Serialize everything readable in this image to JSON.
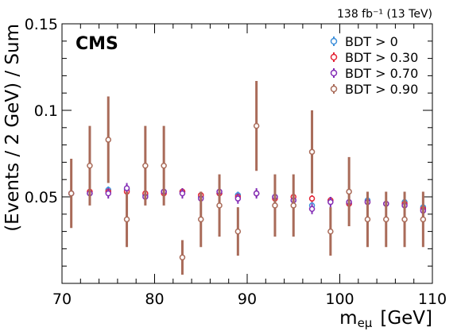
{
  "chart_data": {
    "type": "scatter",
    "lumi_label": "138 fb⁻¹ (13 TeV)",
    "experiment_label": "CMS",
    "xlabel_main": "m",
    "xlabel_sub": "eμ",
    "xlabel_unit": "[GeV]",
    "ylabel": "(Events / 2 GeV) / Sum",
    "xlim": [
      70,
      110
    ],
    "ylim": [
      0,
      0.15
    ],
    "xticks": [
      70,
      80,
      90,
      100,
      110
    ],
    "xtick_labels": [
      "70",
      "80",
      "90",
      "100",
      "110"
    ],
    "yticks": [
      0.05,
      0.1,
      0.15
    ],
    "ytick_labels": [
      "0.05",
      "0.1",
      "0.15"
    ],
    "legend_position": "top-right",
    "colors": {
      "s0": "#3f90da",
      "s1": "#e42536",
      "s2": "#832db6",
      "s3": "#a96b59"
    },
    "x": [
      71,
      73,
      75,
      77,
      79,
      81,
      83,
      85,
      87,
      89,
      91,
      93,
      95,
      97,
      99,
      101,
      103,
      105,
      107,
      109
    ],
    "series": [
      {
        "name": "BDT > 0",
        "values": [
          0.052,
          0.052,
          0.054,
          0.054,
          0.051,
          0.053,
          0.053,
          0.05,
          0.052,
          0.051,
          0.052,
          0.05,
          0.048,
          0.045,
          0.048,
          0.046,
          0.048,
          0.046,
          0.047,
          0.044
        ],
        "errors": [
          0.002,
          0.002,
          0.002,
          0.002,
          0.002,
          0.002,
          0.002,
          0.002,
          0.002,
          0.002,
          0.002,
          0.002,
          0.002,
          0.002,
          0.002,
          0.002,
          0.002,
          0.002,
          0.002,
          0.002
        ]
      },
      {
        "name": "BDT > 0.30",
        "values": [
          0.052,
          0.053,
          0.053,
          0.053,
          0.052,
          0.052,
          0.053,
          0.051,
          0.052,
          0.05,
          0.052,
          0.049,
          0.05,
          0.049,
          0.048,
          0.046,
          0.047,
          0.046,
          0.046,
          0.043
        ],
        "errors": [
          0.002,
          0.002,
          0.002,
          0.002,
          0.002,
          0.002,
          0.002,
          0.002,
          0.002,
          0.002,
          0.002,
          0.002,
          0.002,
          0.002,
          0.002,
          0.002,
          0.002,
          0.002,
          0.002,
          0.002
        ]
      },
      {
        "name": "BDT > 0.70",
        "values": [
          0.052,
          0.052,
          0.052,
          0.055,
          0.05,
          0.053,
          0.052,
          0.049,
          0.053,
          0.049,
          0.052,
          0.05,
          0.048,
          0.043,
          0.047,
          0.047,
          0.047,
          0.046,
          0.045,
          0.042
        ],
        "errors": [
          0.003,
          0.003,
          0.003,
          0.003,
          0.003,
          0.003,
          0.003,
          0.003,
          0.003,
          0.003,
          0.003,
          0.003,
          0.003,
          0.003,
          0.003,
          0.003,
          0.003,
          0.003,
          0.003,
          0.003
        ]
      },
      {
        "name": "BDT > 0.90",
        "values": [
          0.052,
          0.068,
          0.083,
          0.037,
          0.068,
          0.068,
          0.015,
          0.037,
          0.045,
          0.03,
          0.091,
          0.045,
          0.045,
          0.076,
          0.03,
          0.053,
          0.037,
          0.037,
          0.037,
          0.037
        ],
        "errors": [
          0.02,
          0.023,
          0.025,
          0.016,
          0.023,
          0.023,
          0.01,
          0.016,
          0.018,
          0.014,
          0.026,
          0.018,
          0.018,
          0.024,
          0.014,
          0.02,
          0.016,
          0.016,
          0.016,
          0.016
        ]
      }
    ]
  }
}
